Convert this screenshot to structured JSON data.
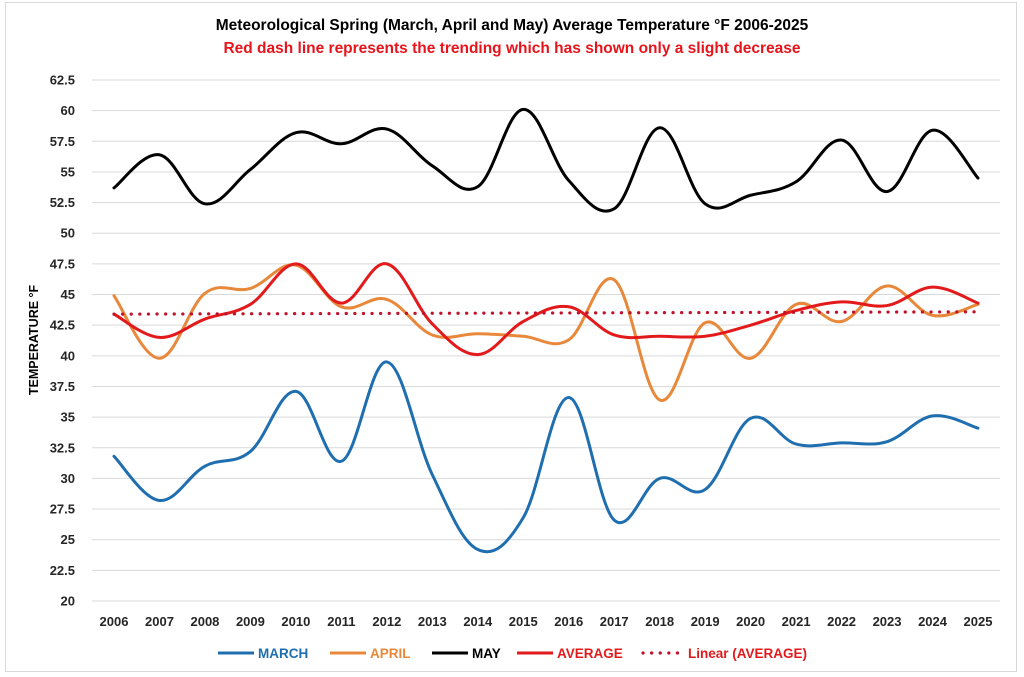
{
  "chart_data": {
    "type": "line",
    "title": "Meteorological Spring (March, April and May) Average Temperature °F 2006-2025",
    "subtitle": "Red dash line represents the trending which has shown only a slight decrease",
    "xlabel": "",
    "ylabel": "TEMPERATURE °F",
    "ylim": [
      20,
      62.5
    ],
    "ytick_step": 2.5,
    "yticks": [
      "20",
      "22.5",
      "25",
      "27.5",
      "30",
      "32.5",
      "35",
      "37.5",
      "40",
      "42.5",
      "45",
      "47.5",
      "50",
      "52.5",
      "55",
      "57.5",
      "60",
      "62.5"
    ],
    "grid": true,
    "legend_position": "bottom",
    "categories": [
      "2006",
      "2007",
      "2008",
      "2009",
      "2010",
      "2011",
      "2012",
      "2013",
      "2014",
      "2015",
      "2016",
      "2017",
      "2018",
      "2019",
      "2020",
      "2021",
      "2022",
      "2023",
      "2024",
      "2025"
    ],
    "series": [
      {
        "name": "MARCH",
        "color": "#1f6fb0",
        "style": "solid-smooth",
        "values": [
          31.8,
          28.2,
          31.0,
          32.2,
          37.1,
          31.4,
          39.5,
          30.3,
          24.2,
          26.8,
          36.6,
          26.6,
          30.0,
          29.1,
          34.9,
          32.8,
          32.9,
          33.0,
          35.1,
          34.1
        ]
      },
      {
        "name": "APRIL",
        "color": "#e8883a",
        "style": "solid-smooth",
        "values": [
          44.9,
          39.8,
          45.1,
          45.5,
          47.4,
          44.0,
          44.6,
          41.7,
          41.8,
          41.6,
          41.3,
          46.2,
          36.4,
          42.7,
          39.8,
          44.2,
          42.8,
          45.7,
          43.3,
          44.2
        ]
      },
      {
        "name": "MAY",
        "color": "#000000",
        "style": "solid-smooth",
        "values": [
          53.7,
          56.4,
          52.4,
          55.2,
          58.2,
          57.3,
          58.5,
          55.5,
          53.8,
          60.1,
          54.3,
          52.0,
          58.6,
          52.4,
          53.1,
          54.2,
          57.6,
          53.4,
          58.4,
          54.5
        ]
      },
      {
        "name": "AVERAGE",
        "color": "#e31a1c",
        "style": "solid-smooth",
        "values": [
          43.4,
          41.5,
          43.0,
          44.2,
          47.5,
          44.3,
          47.5,
          42.6,
          40.1,
          42.8,
          44.0,
          41.7,
          41.6,
          41.6,
          42.5,
          43.7,
          44.4,
          44.1,
          45.6,
          44.3
        ]
      },
      {
        "name": "Linear (AVERAGE)",
        "color": "#c0122a",
        "style": "dotted",
        "values": [
          43.4,
          43.41,
          43.42,
          43.43,
          43.44,
          43.45,
          43.46,
          43.47,
          43.48,
          43.49,
          43.5,
          43.51,
          43.52,
          43.53,
          43.54,
          43.55,
          43.56,
          43.57,
          43.58,
          43.59
        ]
      }
    ]
  }
}
